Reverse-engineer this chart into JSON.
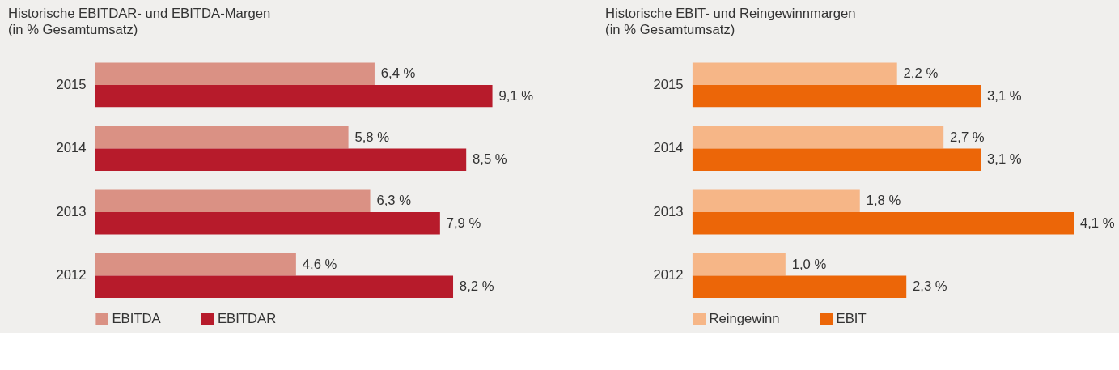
{
  "chart_data": [
    {
      "type": "bar",
      "orientation": "horizontal",
      "title": "Historische EBITDAR- und EBITDA-Margen",
      "subtitle": "(in  % Gesamtumsatz)",
      "categories": [
        "2015",
        "2014",
        "2013",
        "2012"
      ],
      "legend": "bottom left",
      "tick_labels": "y",
      "series": [
        {
          "name": "EBITDA",
          "color": "#da9184",
          "values": [
            6.4,
            5.8,
            6.3,
            4.6
          ],
          "value_labels": [
            "6,4 %",
            "5,8 %",
            "6,3 %",
            "4,6 %"
          ]
        },
        {
          "name": "EBITDAR",
          "color": "#b71b2b",
          "values": [
            9.1,
            8.5,
            7.9,
            8.2
          ],
          "value_labels": [
            "9,1 %",
            "8,5 %",
            "7,9 %",
            "8,2 %"
          ]
        }
      ]
    },
    {
      "type": "bar",
      "orientation": "horizontal",
      "title": "Historische EBIT- und Reingewinnmargen",
      "subtitle": "(in  % Gesamtumsatz)",
      "categories": [
        "2015",
        "2014",
        "2013",
        "2012"
      ],
      "legend": "bottom left",
      "tick_labels": "y",
      "series": [
        {
          "name": "Reingewinn",
          "color": "#f6b687",
          "values": [
            2.2,
            2.7,
            1.8,
            1.0
          ],
          "value_labels": [
            "2,2 %",
            "2,7 %",
            "1,8 %",
            "1,0 %"
          ]
        },
        {
          "name": "EBIT",
          "color": "#ec6608",
          "values": [
            3.1,
            3.1,
            4.1,
            2.3
          ],
          "value_labels": [
            "3,1 %",
            "3,1 %",
            "4,1 %",
            "2,3 %"
          ]
        }
      ]
    }
  ]
}
